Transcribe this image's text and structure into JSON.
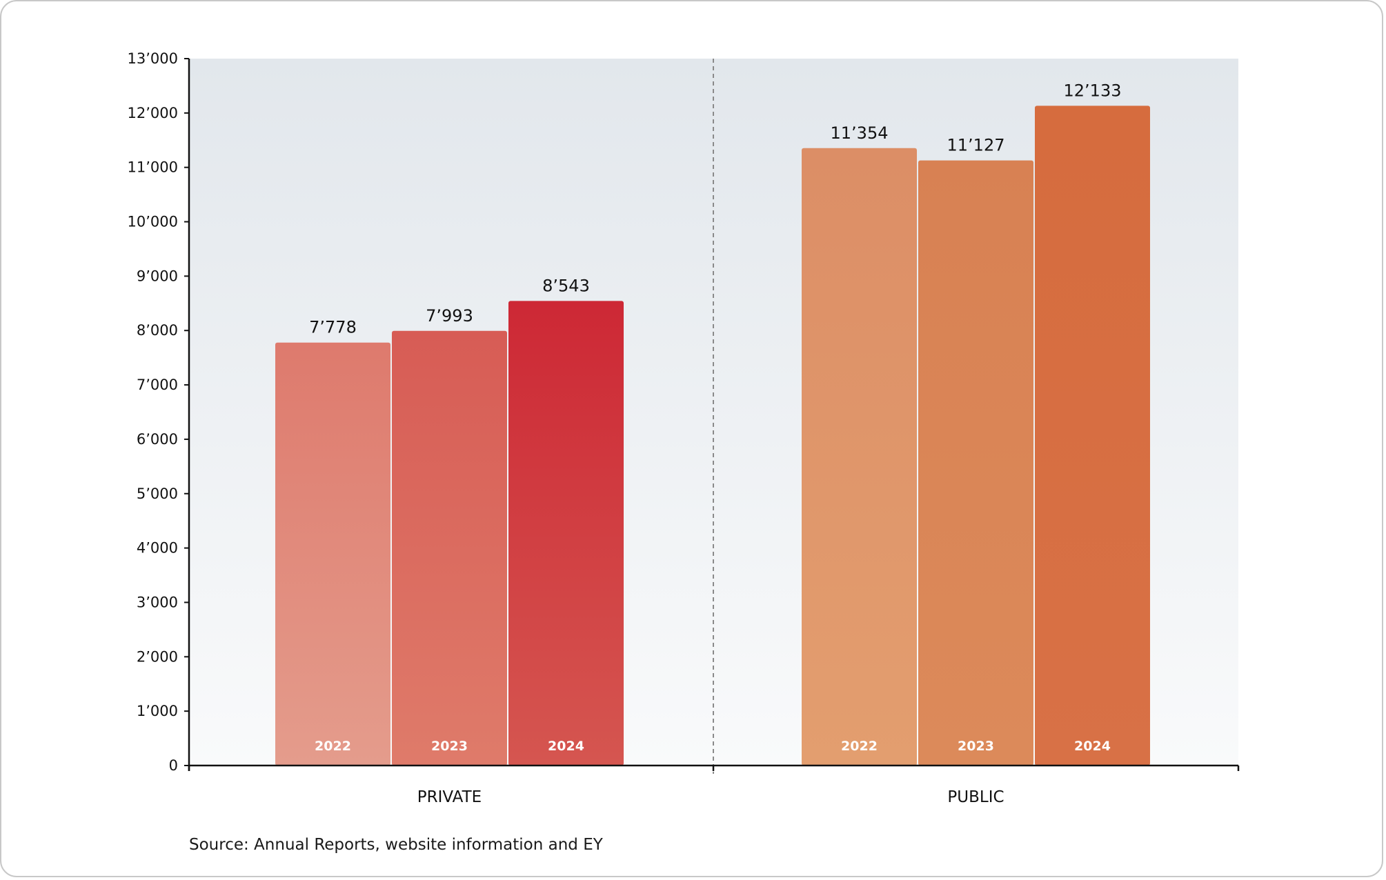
{
  "chart_data": {
    "type": "bar",
    "title": "",
    "xlabel": "",
    "ylabel": "",
    "ylim": [
      0,
      13000
    ],
    "y_ticks": [
      0,
      1000,
      2000,
      3000,
      4000,
      5000,
      6000,
      7000,
      8000,
      9000,
      10000,
      11000,
      12000,
      13000
    ],
    "y_tick_labels": [
      "0",
      "1’000",
      "2’000",
      "3’000",
      "4’000",
      "5’000",
      "6’000",
      "7’000",
      "8’000",
      "9’000",
      "10’000",
      "11’000",
      "12’000",
      "13’000"
    ],
    "grid": false,
    "legend": "none",
    "groups": [
      {
        "name": "PRIVATE",
        "bars": [
          {
            "year": "2022",
            "value": 7778,
            "label": "7’778",
            "color_top": "#de7a6d",
            "color_bottom": "#e49c8c"
          },
          {
            "year": "2023",
            "value": 7993,
            "label": "7’993",
            "color_top": "#d75c55",
            "color_bottom": "#df7b6a"
          },
          {
            "year": "2024",
            "value": 8543,
            "label": "8’543",
            "color_top": "#cd2835",
            "color_bottom": "#d55650"
          }
        ]
      },
      {
        "name": "PUBLIC",
        "bars": [
          {
            "year": "2022",
            "value": 11354,
            "label": "11’354",
            "color_top": "#dc8e66",
            "color_bottom": "#e39e6f"
          },
          {
            "year": "2023",
            "value": 11127,
            "label": "11’127",
            "color_top": "#d88153",
            "color_bottom": "#dc8a5a"
          },
          {
            "year": "2024",
            "value": 12133,
            "label": "12’133",
            "color_top": "#d66c3e",
            "color_bottom": "#d87146"
          }
        ]
      }
    ],
    "background_top": "#e2e7ec",
    "background_bottom": "#f9fafb",
    "divider_color": "#8a8a8a"
  },
  "source": "Source: Annual Reports, website information and EY"
}
